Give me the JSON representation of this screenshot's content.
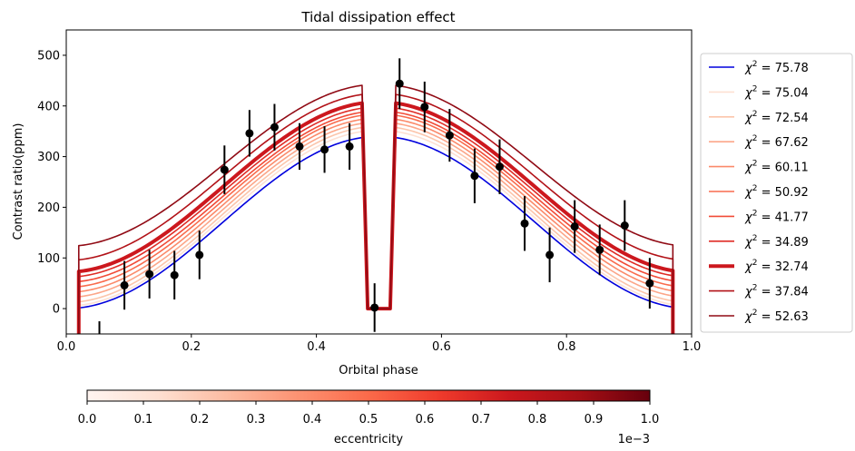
{
  "chart_data": {
    "type": "line",
    "title": "Tidal dissipation effect",
    "xlabel": "Orbital phase",
    "ylabel": "Contrast ratio(ppm)",
    "xlim": [
      0.0,
      1.0
    ],
    "ylim": [
      -50,
      550
    ],
    "x_ticks": [
      "0.0",
      "0.2",
      "0.4",
      "0.6",
      "0.8",
      "1.0"
    ],
    "y_ticks": [
      "0",
      "100",
      "200",
      "300",
      "400",
      "500"
    ],
    "eclipse": {
      "ingress_start": 0.473,
      "flat_start": 0.482,
      "flat_end": 0.518,
      "egress_end": 0.527
    },
    "curve_x_range": [
      0.02,
      0.97
    ],
    "series": [
      {
        "name": "χ² = 75.78",
        "chi2_value": "75.78",
        "color": "#0000dd",
        "line_width": 1.6,
        "min": 0,
        "max": 340,
        "eccentricity": "n/a"
      },
      {
        "name": "χ² = 75.04",
        "chi2_value": "75.04",
        "color": "#fee0d2",
        "line_width": 1.6,
        "min": 5,
        "max": 352,
        "eccentricity": 0.0
      },
      {
        "name": "χ² = 72.54",
        "chi2_value": "72.54",
        "color": "#fcc5ab",
        "line_width": 1.6,
        "min": 12,
        "max": 360,
        "eccentricity": 0.0001
      },
      {
        "name": "χ² = 67.62",
        "chi2_value": "67.62",
        "color": "#fca689",
        "line_width": 1.6,
        "min": 22,
        "max": 368,
        "eccentricity": 0.0002
      },
      {
        "name": "χ² = 60.11",
        "chi2_value": "60.11",
        "color": "#fb8a6a",
        "line_width": 1.6,
        "min": 32,
        "max": 376,
        "eccentricity": 0.0003
      },
      {
        "name": "χ² = 50.92",
        "chi2_value": "50.92",
        "color": "#f96c4e",
        "line_width": 1.6,
        "min": 42,
        "max": 384,
        "eccentricity": 0.0004
      },
      {
        "name": "χ² = 41.77",
        "chi2_value": "41.77",
        "color": "#f14b37",
        "line_width": 1.6,
        "min": 52,
        "max": 390,
        "eccentricity": 0.0005
      },
      {
        "name": "χ² = 34.89",
        "chi2_value": "34.89",
        "color": "#df2c26",
        "line_width": 1.6,
        "min": 62,
        "max": 398,
        "eccentricity": 0.0006
      },
      {
        "name": "χ² = 32.74",
        "chi2_value": "32.74",
        "color": "#cc181e",
        "line_width": 4.0,
        "min": 72,
        "max": 408,
        "eccentricity": 0.0007
      },
      {
        "name": "χ² = 37.84",
        "chi2_value": "37.84",
        "color": "#b21218",
        "line_width": 1.6,
        "min": 95,
        "max": 425,
        "eccentricity": 0.0008
      },
      {
        "name": "χ² = 52.63",
        "chi2_value": "52.63",
        "color": "#900a14",
        "line_width": 1.6,
        "min": 123,
        "max": 443,
        "eccentricity": 0.0009
      }
    ],
    "observations": {
      "x": [
        0.053,
        0.093,
        0.133,
        0.173,
        0.213,
        0.253,
        0.293,
        0.333,
        0.373,
        0.413,
        0.453,
        0.493,
        0.533,
        0.573,
        0.613,
        0.653,
        0.693,
        0.733,
        0.773,
        0.813,
        0.853,
        0.893,
        0.933
      ],
      "y": [
        -60,
        46,
        68,
        66,
        106,
        274,
        346,
        358,
        320,
        314,
        320,
        2,
        444,
        398,
        342,
        262,
        280,
        168,
        106,
        162,
        116,
        164,
        50
      ],
      "err": [
        35,
        48,
        48,
        48,
        48,
        48,
        46,
        46,
        46,
        46,
        46,
        48,
        50,
        50,
        52,
        54,
        54,
        54,
        54,
        52,
        50,
        50,
        50
      ],
      "color": "#000000"
    },
    "colorbar": {
      "label": "eccentricity",
      "range": [
        0.0,
        1.0
      ],
      "ticks": [
        "0.0",
        "0.1",
        "0.2",
        "0.3",
        "0.4",
        "0.5",
        "0.6",
        "0.7",
        "0.8",
        "0.9",
        "1.0"
      ],
      "offset_text": "1e−3",
      "colormap": [
        "#fff5f0",
        "#fee0d2",
        "#fcbba1",
        "#fc9272",
        "#fb6a4a",
        "#ef3b2c",
        "#cb181d",
        "#a50f15",
        "#67000d"
      ]
    },
    "legend_position": "outside-right",
    "grid": false
  }
}
